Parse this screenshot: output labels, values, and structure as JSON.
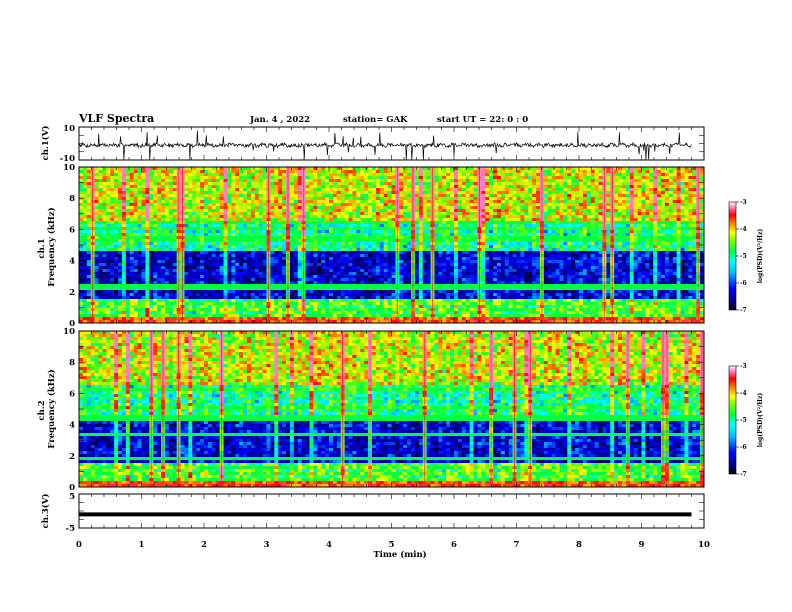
{
  "header": {
    "title": "VLF Spectra",
    "date": "Jan. 4  , 2022",
    "station": "station= GAK",
    "start": "start  UT  =  22: 0  : 0"
  },
  "chart_data": [
    {
      "type": "line",
      "name": "ch1-waveform",
      "ylabel": "ch.1(V)",
      "ylim": [
        -10,
        10
      ],
      "yticks": [
        "10",
        "-10"
      ],
      "xlim": [
        0,
        10
      ],
      "note": "noisy waveform, baseline about 0 V with spikes"
    },
    {
      "type": "heatmap",
      "name": "ch1-spectrogram",
      "ylabel": "ch.1\nFrequency  (kHz)",
      "ylim": [
        0,
        10
      ],
      "yticks": [
        "0",
        "2",
        "4",
        "6",
        "8",
        "10"
      ],
      "xlim": [
        0,
        9.8
      ],
      "color_range": [
        -7,
        -3
      ],
      "colorbar_label": "log(PSD)(V²/Hz)",
      "colorbar_ticks": [
        "-3",
        "-4",
        "-5",
        "-6",
        "-7"
      ],
      "bands_khz": [
        0.2,
        0.5,
        0.8,
        1.2,
        2.2,
        2.4,
        5.4,
        6.0,
        6.4
      ],
      "seed": 11
    },
    {
      "type": "heatmap",
      "name": "ch2-spectrogram",
      "ylabel": "ch.2\nFrequency  (kHz)",
      "ylim": [
        0,
        10
      ],
      "yticks": [
        "0",
        "2",
        "4",
        "6",
        "8",
        "10"
      ],
      "xlim": [
        0,
        9.8
      ],
      "color_range": [
        -7,
        -3
      ],
      "colorbar_label": "log(PSD)(V²/Hz)",
      "colorbar_ticks": [
        "-3",
        "-4",
        "-5",
        "-6",
        "-7"
      ],
      "bands_khz": [
        0.2,
        0.5,
        0.8,
        1.2,
        1.8,
        3.4,
        4.4,
        5.1,
        6.2
      ],
      "seed": 29
    },
    {
      "type": "line",
      "name": "ch3-waveform",
      "ylabel": "ch.3(V)",
      "ylim": [
        -5,
        5
      ],
      "yticks": [
        "5",
        "-5"
      ],
      "xlim": [
        0,
        10
      ],
      "level": -1,
      "xlabel": "Time  (min)",
      "xticks": [
        "0",
        "1",
        "2",
        "3",
        "4",
        "5",
        "6",
        "7",
        "8",
        "9",
        "10"
      ]
    }
  ],
  "colors": {
    "background": "#ffffff",
    "axes": "#000000",
    "colormap": [
      "#000000",
      "#00008b",
      "#0000ff",
      "#00bfff",
      "#00ffff",
      "#00ff80",
      "#80ff00",
      "#ffff00",
      "#ff8000",
      "#ff0000",
      "#ff80c0",
      "#ffffff"
    ]
  }
}
